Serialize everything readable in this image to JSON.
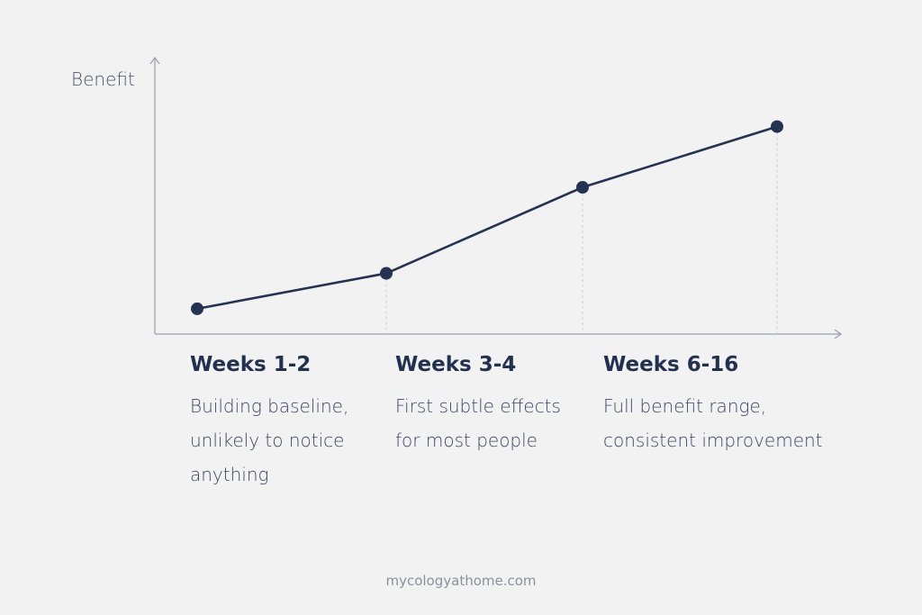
{
  "chart_data": {
    "type": "line",
    "title": "",
    "xlabel": "",
    "ylabel": "Benefit",
    "ylim": [
      0,
      100
    ],
    "categories": [
      "Weeks 1-2",
      "Weeks 3-4",
      "Weeks 6-16",
      ""
    ],
    "series": [
      {
        "name": "Benefit",
        "values": [
          10,
          24,
          58,
          82
        ]
      }
    ],
    "grid": false,
    "legend": "none",
    "annotations": [
      {
        "title": "Weeks 1-2",
        "text": "Building baseline,\nunlikely to notice\nanything"
      },
      {
        "title": "Weeks 3-4",
        "text": "First subtle effects\nfor most people"
      },
      {
        "title": "Weeks 6-16",
        "text": "Full benefit range,\nconsistent improvement"
      }
    ]
  },
  "footer": {
    "source": "mycologyathome.com"
  },
  "colors": {
    "line": "#243352",
    "axis": "#9aa0ac",
    "background": "#f2f2f3"
  }
}
